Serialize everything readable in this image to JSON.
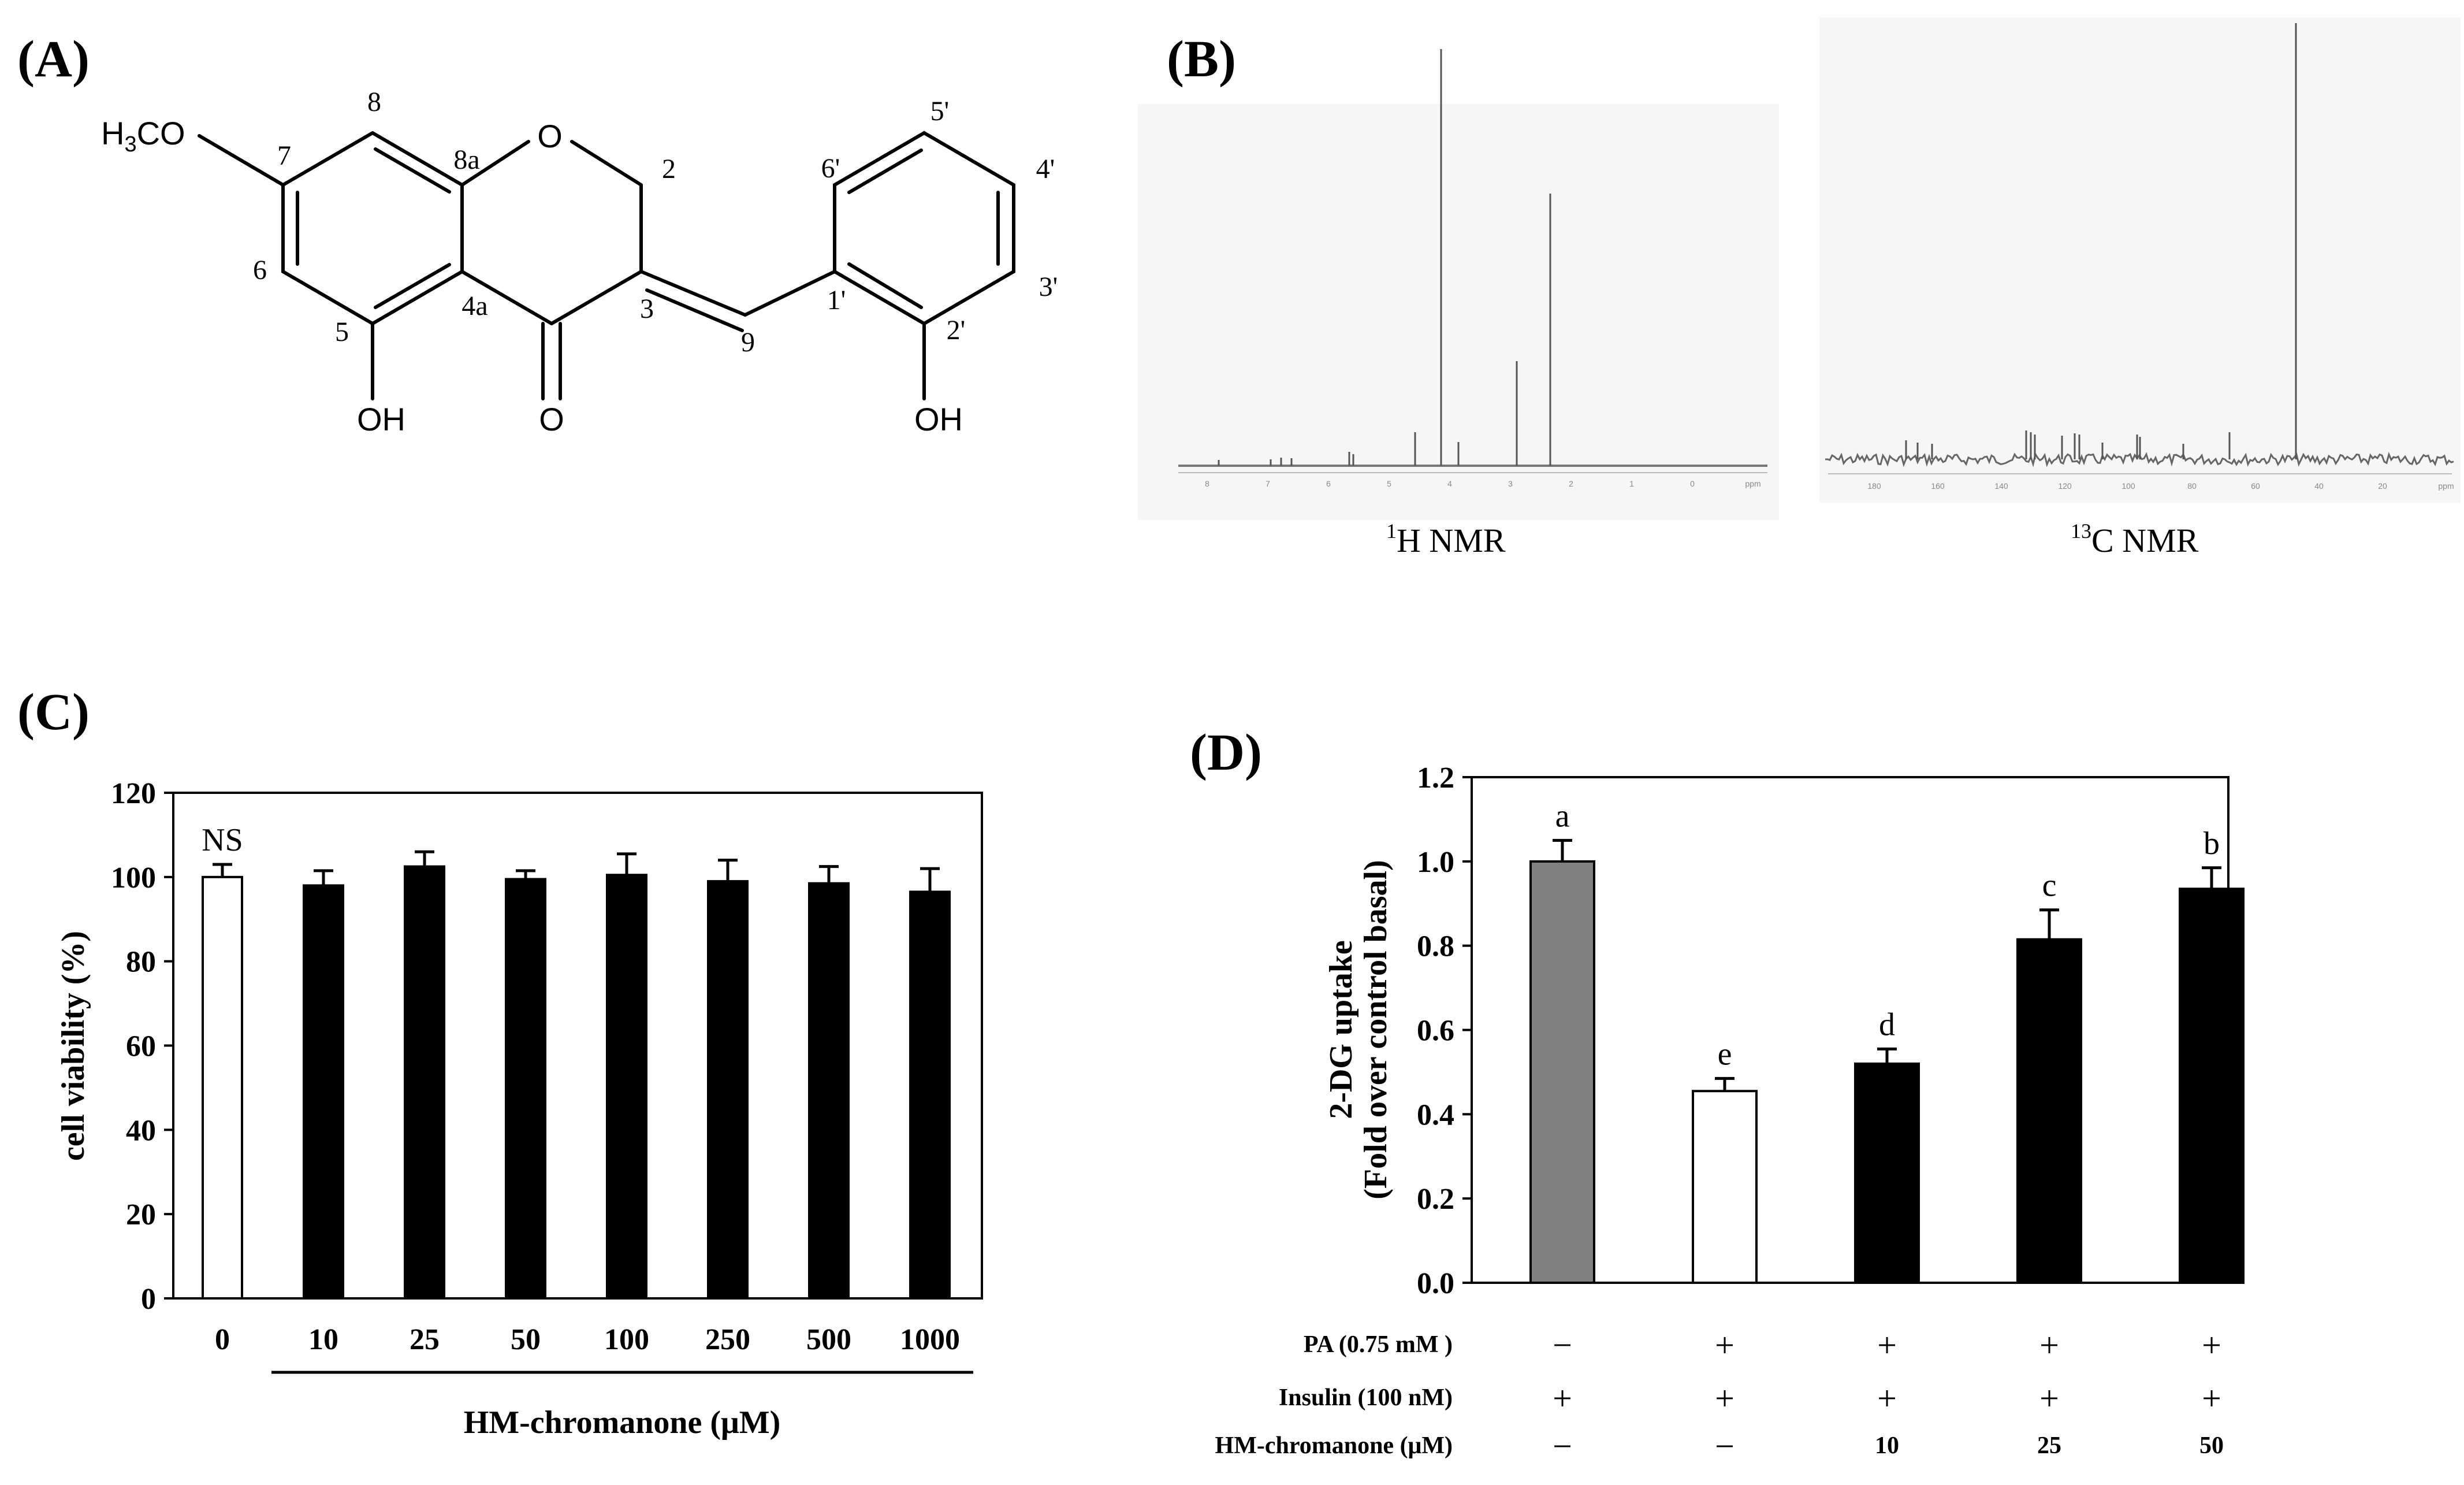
{
  "panels": {
    "A": "(A)",
    "B": "(B)",
    "C": "(C)",
    "D": "(D)"
  },
  "structure": {
    "groups": {
      "methoxy": "H3CO",
      "oh5": "OH",
      "oh2p": "OH",
      "ring_o": "O",
      "carbonyl_o": "O"
    },
    "numbers": {
      "n8": "8",
      "n8a": "8a",
      "n2": "2",
      "n7": "7",
      "n6": "6",
      "n5": "5",
      "n4a": "4a",
      "n3": "3",
      "n9": "9",
      "n1p": "1'",
      "n2p": "2'",
      "n3p": "3'",
      "n4p": "4'",
      "n5p": "5'",
      "n6p": "6'"
    }
  },
  "nmr": {
    "h_label": "H NMR",
    "h_sup": "1",
    "c_label": "C NMR",
    "c_sup": "13",
    "h_ticks": [
      "8",
      "7",
      "6",
      "5",
      "4",
      "3",
      "2",
      "1",
      "0",
      "ppm"
    ],
    "c_ticks": [
      "180",
      "160",
      "140",
      "120",
      "100",
      "80",
      "60",
      "40",
      "20",
      "ppm"
    ]
  },
  "chart_data": [
    {
      "type": "bar",
      "panel": "C",
      "ylabel": "cell viability (%)",
      "xlabel": "HM-chromanone (μM)",
      "categories": [
        "0",
        "10",
        "25",
        "50",
        "100",
        "250",
        "500",
        "1000"
      ],
      "values": [
        100,
        98,
        102.5,
        99.5,
        100.5,
        99,
        98.5,
        96.5
      ],
      "errors": [
        3,
        3.5,
        3.5,
        2,
        5,
        5,
        4,
        5.5
      ],
      "bar_colors": [
        "#ffffff",
        "#000000",
        "#000000",
        "#000000",
        "#000000",
        "#000000",
        "#000000",
        "#000000"
      ],
      "annotations": [
        "NS",
        "",
        "",
        "",
        "",
        "",
        "",
        ""
      ],
      "ylim": [
        0,
        120
      ],
      "yticks": [
        "0",
        "20",
        "40",
        "60",
        "80",
        "100",
        "120"
      ]
    },
    {
      "type": "bar",
      "panel": "D",
      "ylabel": "2-DG uptake",
      "ylabel2": "(Fold over control basal)",
      "values": [
        1.0,
        0.455,
        0.52,
        0.815,
        0.935
      ],
      "errors": [
        0.05,
        0.03,
        0.035,
        0.07,
        0.05
      ],
      "bar_colors": [
        "#808080",
        "#ffffff",
        "#000000",
        "#000000",
        "#000000"
      ],
      "annotations": [
        "a",
        "e",
        "d",
        "c",
        "b"
      ],
      "ylim": [
        0,
        1.2
      ],
      "yticks": [
        "0.0",
        "0.2",
        "0.4",
        "0.6",
        "0.8",
        "1.0",
        "1.2"
      ],
      "conditions": [
        {
          "label": "PA (0.75 mM )",
          "values": [
            "−",
            "+",
            "+",
            "+",
            "+"
          ]
        },
        {
          "label": "Insulin (100 nM)",
          "values": [
            "+",
            "+",
            "+",
            "+",
            "+"
          ]
        },
        {
          "label": "HM-chromanone (μM)",
          "values": [
            "−",
            "−",
            "10",
            "25",
            "50"
          ]
        }
      ]
    }
  ]
}
